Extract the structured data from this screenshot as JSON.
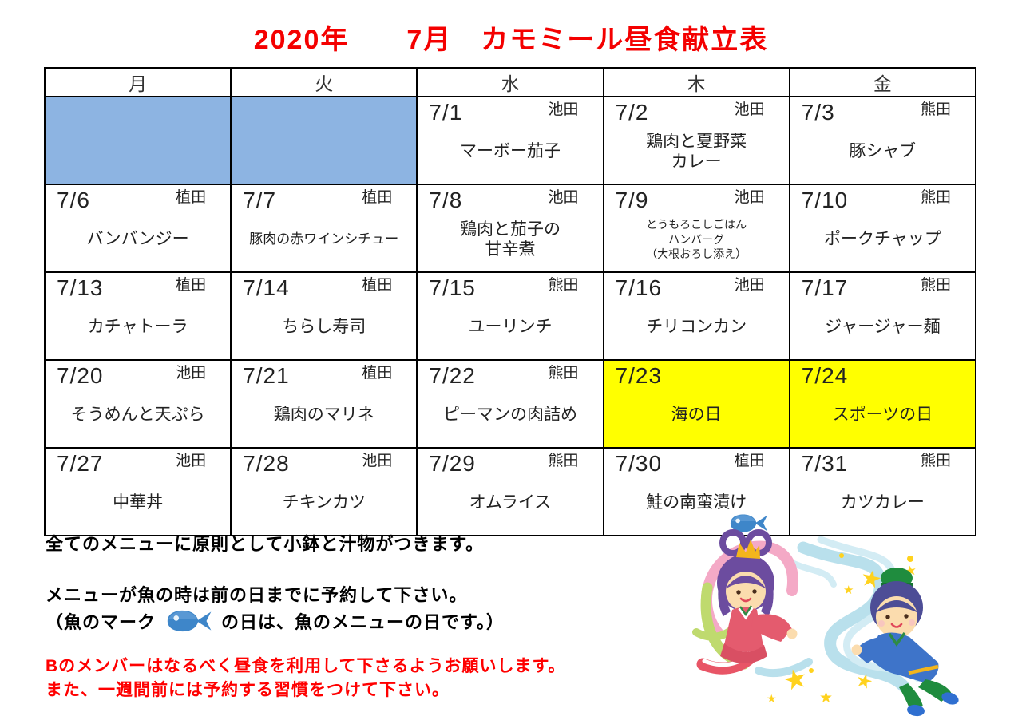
{
  "title": "2020年　　7月　カモミール昼食献立表",
  "colors": {
    "title_red": "#f40000",
    "warning_red": "#ff0000",
    "empty_cell_blue": "#8DB4E2",
    "holiday_yellow": "#FFFF00",
    "fish_blue": "#3E86C9"
  },
  "calendar": {
    "day_headers": [
      "月",
      "火",
      "水",
      "木",
      "金"
    ],
    "weeks": [
      [
        {
          "type": "empty"
        },
        {
          "type": "empty"
        },
        {
          "type": "menu",
          "date": "7/1",
          "cook": "池田",
          "menu_lines": [
            "マーボー茄子"
          ],
          "menu_size": "normal"
        },
        {
          "type": "menu",
          "date": "7/2",
          "cook": "池田",
          "menu_lines": [
            "鶏肉と夏野菜",
            "カレー"
          ],
          "menu_size": "normal"
        },
        {
          "type": "menu",
          "date": "7/3",
          "cook": "熊田",
          "menu_lines": [
            "豚シャブ"
          ],
          "menu_size": "normal"
        }
      ],
      [
        {
          "type": "menu",
          "date": "7/6",
          "cook": "植田",
          "menu_lines": [
            "バンバンジー"
          ],
          "menu_size": "normal"
        },
        {
          "type": "menu",
          "date": "7/7",
          "cook": "植田",
          "menu_lines": [
            "豚肉の赤ワインシチュー"
          ],
          "menu_size": "small"
        },
        {
          "type": "menu",
          "date": "7/8",
          "cook": "池田",
          "menu_lines": [
            "鶏肉と茄子の",
            "甘辛煮"
          ],
          "menu_size": "normal"
        },
        {
          "type": "menu",
          "date": "7/9",
          "cook": "池田",
          "menu_lines": [
            "とうもろこしごはん",
            "ハンバーグ",
            "（大根おろし添え）"
          ],
          "menu_size": "xsmall"
        },
        {
          "type": "menu",
          "date": "7/10",
          "cook": "熊田",
          "menu_lines": [
            "ポークチャップ"
          ],
          "menu_size": "normal"
        }
      ],
      [
        {
          "type": "menu",
          "date": "7/13",
          "cook": "植田",
          "menu_lines": [
            "カチャトーラ"
          ],
          "menu_size": "normal"
        },
        {
          "type": "menu",
          "date": "7/14",
          "cook": "植田",
          "menu_lines": [
            "ちらし寿司"
          ],
          "menu_size": "normal"
        },
        {
          "type": "menu",
          "date": "7/15",
          "cook": "熊田",
          "menu_lines": [
            "ユーリンチ"
          ],
          "menu_size": "normal"
        },
        {
          "type": "menu",
          "date": "7/16",
          "cook": "池田",
          "menu_lines": [
            "チリコンカン"
          ],
          "menu_size": "normal"
        },
        {
          "type": "menu",
          "date": "7/17",
          "cook": "熊田",
          "menu_lines": [
            "ジャージャー麺"
          ],
          "menu_size": "normal"
        }
      ],
      [
        {
          "type": "menu",
          "date": "7/20",
          "cook": "池田",
          "menu_lines": [
            "そうめんと天ぷら"
          ],
          "menu_size": "normal"
        },
        {
          "type": "menu",
          "date": "7/21",
          "cook": "植田",
          "menu_lines": [
            "鶏肉のマリネ"
          ],
          "menu_size": "normal"
        },
        {
          "type": "menu",
          "date": "7/22",
          "cook": "熊田",
          "menu_lines": [
            "ピーマンの肉詰め"
          ],
          "menu_size": "normal"
        },
        {
          "type": "holiday",
          "date": "7/23",
          "holiday": "海の日"
        },
        {
          "type": "holiday",
          "date": "7/24",
          "holiday": "スポーツの日"
        }
      ],
      [
        {
          "type": "menu",
          "date": "7/27",
          "cook": "池田",
          "menu_lines": [
            "中華丼"
          ],
          "menu_size": "normal"
        },
        {
          "type": "menu",
          "date": "7/28",
          "cook": "池田",
          "menu_lines": [
            "チキンカツ"
          ],
          "menu_size": "normal"
        },
        {
          "type": "menu",
          "date": "7/29",
          "cook": "熊田",
          "menu_lines": [
            "オムライス"
          ],
          "menu_size": "normal"
        },
        {
          "type": "menu",
          "date": "7/30",
          "cook": "植田",
          "menu_lines": [
            "鮭の南蛮漬け"
          ],
          "menu_size": "normal",
          "fish": true
        },
        {
          "type": "menu",
          "date": "7/31",
          "cook": "熊田",
          "menu_lines": [
            "カツカレー"
          ],
          "menu_size": "normal"
        }
      ]
    ]
  },
  "notes": {
    "line1": "全てのメニューに原則として小鉢と汁物がつきます。",
    "line2": "メニューが魚の時は前の日までに予約して下さい。",
    "line3_prefix": "（魚のマーク",
    "line3_suffix": "の日は、魚のメニューの日です。）",
    "warning_line1": "Bのメンバーはなるべく昼食を利用して下さるようお願いします。",
    "warning_line2": "また、一週間前には予約する習慣をつけて下さい。"
  },
  "illustration": {
    "name": "七夕 織姫と彦星"
  }
}
